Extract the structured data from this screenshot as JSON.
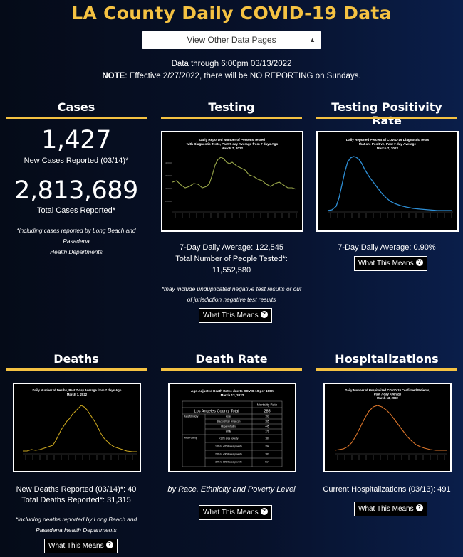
{
  "header": {
    "title": "LA County Daily COVID-19 Data",
    "select_label": "View Other Data Pages",
    "data_through": "Data through 6:00pm 03/13/2022",
    "note_label": "NOTE",
    "note_text": ": Effective 2/27/2022, there will be NO REPORTING on Sundays."
  },
  "cases": {
    "title": "Cases",
    "new_value": "1,427",
    "new_label": "New Cases Reported (03/14)*",
    "total_value": "2,813,689",
    "total_label": "Total Cases Reported*",
    "footnote_1": "*including cases reported by Long Beach and Pasadena",
    "footnote_2": "Health Departments"
  },
  "testing": {
    "title": "Testing",
    "chart_title_1": "Daily Reported Number of Persons Tested",
    "chart_title_2": "with Diagnostic Tests, Past 7-day Average from 7 days Ago",
    "chart_title_3": "March 7, 2022",
    "avg_label": "7-Day Daily Average: 122,545",
    "total_label": "Total Number of People Tested*:",
    "total_value": "11,552,580",
    "footnote_1": "*may include unduplicated negative test results or out",
    "footnote_2": "of jurisdiction negative test results",
    "button_label": "What This Means"
  },
  "positivity": {
    "title": "Testing Positivity Rate",
    "chart_title_1": "Daily Reported Percent of COVID-19 Diagnostic Tests",
    "chart_title_2": "that are Positive, Past 7-day Average",
    "chart_title_3": "March 7, 2022",
    "avg_label": "7-Day Daily Average: 0.90%",
    "button_label": "What This Means"
  },
  "deaths": {
    "title": "Deaths",
    "chart_title_1": "Daily Number of Deaths, Past 7-day Average from 7 days Ago",
    "chart_title_2": "March 7, 2022",
    "new_label": "New Deaths Reported (03/14)*: 40",
    "total_label": "Total Deaths Reported*: 31,315",
    "footnote_1": "*including deaths reported by Long Beach and",
    "footnote_2": "Pasadena Health Departments",
    "button_label": "What This Means"
  },
  "death_rate": {
    "title": "Death Rate",
    "chart_title_1": "Age-Adjusted Death Rates due to COVID-19 per 100K",
    "chart_title_2": "March 13, 2022",
    "table_header": "Mortality Rate",
    "county_label": "Los Angeles County Total",
    "county_value": "285",
    "group_race": "Race/Ethnicity",
    "group_poverty": "Area Poverty",
    "rows": [
      {
        "label": "Asian",
        "value": "193"
      },
      {
        "label": "Black/African American",
        "value": "365"
      },
      {
        "label": "Hispanic/Latino",
        "value": "445"
      },
      {
        "label": "White",
        "value": "171"
      },
      {
        "label": "<10% area poverty",
        "value": "187"
      },
      {
        "label": "10% to <20% area poverty",
        "value": "294"
      },
      {
        "label": "20% to <30% area poverty",
        "value": "383"
      },
      {
        "label": "30% to 100% area poverty",
        "value": "514"
      }
    ],
    "caption": "by Race, Ethnicity and Poverty Level",
    "button_label": "What This Means"
  },
  "hospitalizations": {
    "title": "Hospitalizations",
    "chart_title_1": "Daily Number of Hospitalized COVID-19 Confirmed Patients,",
    "chart_title_2": "Past 7-day Average",
    "chart_title_3": "March 13, 2022",
    "current_label": "Current Hospitalizations (03/13): 491",
    "button_label": "What This Means"
  },
  "colors": {
    "accent": "#f5c242",
    "testing_line": "#9aa84a",
    "positivity_line": "#2e8fd6",
    "deaths_line": "#c9a51e",
    "hosp_line": "#d9742a"
  }
}
